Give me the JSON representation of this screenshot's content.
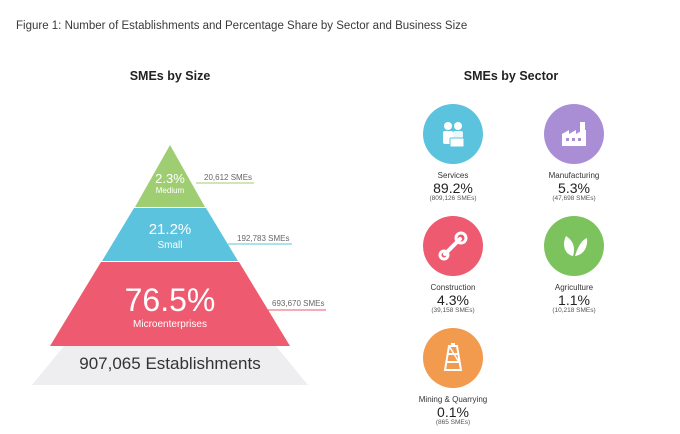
{
  "figure_title": "Figure 1: Number of Establishments and Percentage Share by Sector and Business Size",
  "colors": {
    "medium": "#9fce72",
    "small": "#5cc3de",
    "micro": "#ee5a6f",
    "base": "#eeeef0",
    "services": "#5cc3de",
    "manufacturing": "#a98ed6",
    "construction": "#ee5a6f",
    "agriculture": "#7cc35e",
    "mining": "#f29a4e"
  },
  "chart_data": [
    {
      "type": "pyramid",
      "title": "SMEs by Size",
      "tiers": [
        {
          "label": "Medium",
          "percent": 2.3,
          "percent_text": "2.3%",
          "count_text": "20,612 SMEs"
        },
        {
          "label": "Small",
          "percent": 21.2,
          "percent_text": "21.2%",
          "count_text": "192,783 SMEs"
        },
        {
          "label": "Microenterprises",
          "percent": 76.5,
          "percent_text": "76.5%",
          "count_text": "693,670 SMEs"
        }
      ],
      "total_text": "907,065 Establishments"
    },
    {
      "type": "icon-grid",
      "title": "SMEs by Sector",
      "sectors": [
        {
          "name": "Services",
          "percent": 89.2,
          "percent_text": "89.2%",
          "count_text": "(809,126 SMEs)",
          "icon": "people-icon"
        },
        {
          "name": "Manufacturing",
          "percent": 5.3,
          "percent_text": "5.3%",
          "count_text": "(47,698 SMEs)",
          "icon": "factory-icon"
        },
        {
          "name": "Construction",
          "percent": 4.3,
          "percent_text": "4.3%",
          "count_text": "(39,158 SMEs)",
          "icon": "wrench-icon"
        },
        {
          "name": "Agriculture",
          "percent": 1.1,
          "percent_text": "1.1%",
          "count_text": "(10,218 SMEs)",
          "icon": "leaf-icon"
        },
        {
          "name": "Mining & Quarrying",
          "percent": 0.1,
          "percent_text": "0.1%",
          "count_text": "(865 SMEs)",
          "icon": "mining-tower-icon"
        }
      ]
    }
  ]
}
